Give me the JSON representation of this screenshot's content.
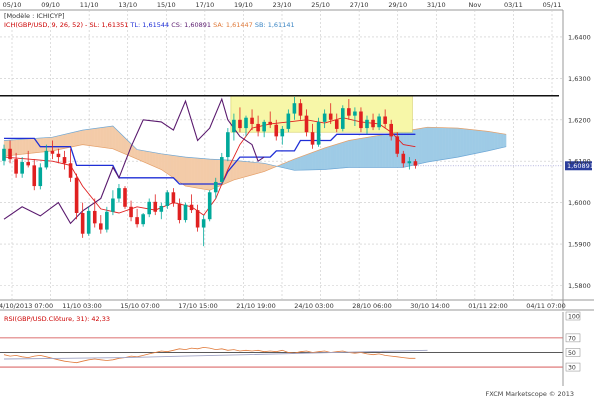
{
  "header": {
    "model_label": "[Modèle : ICHICYP]",
    "legend": [
      {
        "text": "ICH(GBP/USD, 9, 26, 52) -",
        "color": "#cc0000"
      },
      {
        "text": "SL: 1,61351",
        "color": "#cc0000"
      },
      {
        "text": "TL: 1,61544",
        "color": "#1f2fd6"
      },
      {
        "text": "CS: 1,60891",
        "color": "#5a1a6e"
      },
      {
        "text": "SA: 1,61447",
        "color": "#e07a3a"
      },
      {
        "text": "SB: 1,61141",
        "color": "#3c86c4"
      }
    ]
  },
  "rsi_header": {
    "text": "RSI(GBP/USD.Clôture, 31): 42,33",
    "color": "#cc0000"
  },
  "footer": {
    "text": "FXCM Marketscope © 2013"
  },
  "colors": {
    "grid": "#c8c8c8",
    "bull": "#00a89a",
    "bear": "#e02020",
    "tenkan": "#e02020",
    "kijun": "#1f2fd6",
    "chikou": "#5a1a6e",
    "cloud_bull": "#9ecbe6",
    "cloud_bear": "#f3cba8",
    "range_box": "#f7f7a8",
    "rsi_line": "#e07a3a",
    "rsi_ma": "#a0a4c4"
  },
  "chart_data": [
    {
      "type": "candlestick",
      "title": "ICH(GBP/USD, 9, 26, 52)",
      "top_axis_labels": [
        "05/10",
        "09/10",
        "11/10",
        "13/10",
        "15/10",
        "17/10",
        "19/10",
        "23/10",
        "25/10",
        "27/10",
        "29/10",
        "31/10",
        "Nov",
        "03/11",
        "05/11"
      ],
      "bottom_axis_labels": [
        "04/10/2013 07:00",
        "11/10 03:00",
        "15/10 07:00",
        "17/10 15:00",
        "21/10 19:00",
        "24/10 03:00",
        "28/10 06:00",
        "30/10 14:00",
        "01/11 22:00",
        "04/11 07:00"
      ],
      "y_ticks": [
        "1,6400",
        "1,6300",
        "1,6200",
        "1,6100",
        "1,6000",
        "1,5900",
        "1,5800"
      ],
      "ylim": [
        1.5765,
        1.6465
      ],
      "last_price_label": "1,60891",
      "horizontal_level": 1.6258,
      "range_box": {
        "from_index": 38,
        "to_index": 67,
        "y_low": 1.617,
        "y_high": 1.6258
      },
      "candles": [
        [
          1.6101,
          1.614,
          1.609,
          1.613
        ],
        [
          1.613,
          1.615,
          1.6095,
          1.6105
        ],
        [
          1.6105,
          1.612,
          1.606,
          1.607
        ],
        [
          1.607,
          1.611,
          1.606,
          1.6098
        ],
        [
          1.6098,
          1.6125,
          1.6085,
          1.609
        ],
        [
          1.609,
          1.6105,
          1.603,
          1.604
        ],
        [
          1.604,
          1.6095,
          1.6032,
          1.6085
        ],
        [
          1.6085,
          1.614,
          1.608,
          1.6125
        ],
        [
          1.6125,
          1.615,
          1.6105,
          1.6118
        ],
        [
          1.6118,
          1.613,
          1.6095,
          1.611
        ],
        [
          1.611,
          1.6125,
          1.608,
          1.6095
        ],
        [
          1.6095,
          1.613,
          1.605,
          1.606
        ],
        [
          1.606,
          1.607,
          1.596,
          1.5975
        ],
        [
          1.5975,
          1.6,
          1.5915,
          1.5925
        ],
        [
          1.5925,
          1.599,
          1.592,
          1.598
        ],
        [
          1.598,
          1.601,
          1.594,
          1.595
        ],
        [
          1.595,
          1.597,
          1.5925,
          1.5935
        ],
        [
          1.5935,
          1.599,
          1.5928,
          1.5978
        ],
        [
          1.5978,
          1.603,
          1.597,
          1.601
        ],
        [
          1.601,
          1.6045,
          1.6,
          1.6035
        ],
        [
          1.6035,
          1.604,
          1.5985,
          1.599
        ],
        [
          1.599,
          1.6005,
          1.5955,
          1.5965
        ],
        [
          1.5965,
          1.5985,
          1.594,
          1.5948
        ],
        [
          1.5948,
          1.5975,
          1.5942,
          1.5972
        ],
        [
          1.5972,
          1.601,
          1.5965,
          1.6002
        ],
        [
          1.6002,
          1.602,
          1.597,
          1.5978
        ],
        [
          1.5978,
          1.6,
          1.596,
          1.5992
        ],
        [
          1.5992,
          1.603,
          1.5985,
          1.6025
        ],
        [
          1.6025,
          1.6035,
          1.599,
          1.5998
        ],
        [
          1.5998,
          1.601,
          1.595,
          1.5958
        ],
        [
          1.5958,
          1.6,
          1.5952,
          1.5995
        ],
        [
          1.5995,
          1.602,
          1.5975,
          1.5982
        ],
        [
          1.5982,
          1.5995,
          1.593,
          1.594
        ],
        [
          1.594,
          1.597,
          1.5895,
          1.596
        ],
        [
          1.596,
          1.603,
          1.5955,
          1.6025
        ],
        [
          1.6025,
          1.606,
          1.601,
          1.605
        ],
        [
          1.605,
          1.612,
          1.6045,
          1.611
        ],
        [
          1.611,
          1.618,
          1.61,
          1.617
        ],
        [
          1.617,
          1.6215,
          1.615,
          1.62
        ],
        [
          1.62,
          1.623,
          1.617,
          1.618
        ],
        [
          1.618,
          1.621,
          1.616,
          1.6205
        ],
        [
          1.6205,
          1.6225,
          1.6175,
          1.619
        ],
        [
          1.619,
          1.621,
          1.616,
          1.6172
        ],
        [
          1.6172,
          1.62,
          1.6158,
          1.6195
        ],
        [
          1.6195,
          1.622,
          1.618,
          1.6188
        ],
        [
          1.6188,
          1.62,
          1.615,
          1.616
        ],
        [
          1.616,
          1.6185,
          1.614,
          1.6178
        ],
        [
          1.6178,
          1.6225,
          1.617,
          1.6215
        ],
        [
          1.6215,
          1.6255,
          1.62,
          1.624
        ],
        [
          1.624,
          1.625,
          1.62,
          1.621
        ],
        [
          1.621,
          1.6225,
          1.616,
          1.617
        ],
        [
          1.617,
          1.619,
          1.613,
          1.614
        ],
        [
          1.614,
          1.6205,
          1.6135,
          1.6195
        ],
        [
          1.6195,
          1.6225,
          1.618,
          1.6215
        ],
        [
          1.6215,
          1.624,
          1.619,
          1.62
        ],
        [
          1.62,
          1.6215,
          1.617,
          1.6178
        ],
        [
          1.6178,
          1.6235,
          1.6172,
          1.6228
        ],
        [
          1.6228,
          1.625,
          1.62,
          1.621
        ],
        [
          1.621,
          1.623,
          1.6185,
          1.622
        ],
        [
          1.622,
          1.623,
          1.617,
          1.618
        ],
        [
          1.618,
          1.621,
          1.6165,
          1.62
        ],
        [
          1.62,
          1.6215,
          1.6175,
          1.6182
        ],
        [
          1.6182,
          1.6215,
          1.6175,
          1.6208
        ],
        [
          1.6208,
          1.6225,
          1.618,
          1.619
        ],
        [
          1.619,
          1.62,
          1.615,
          1.616
        ],
        [
          1.616,
          1.617,
          1.611,
          1.6118
        ],
        [
          1.6118,
          1.6125,
          1.6085,
          1.6095
        ],
        [
          1.6095,
          1.611,
          1.608,
          1.61
        ],
        [
          1.61,
          1.6105,
          1.6082,
          1.6089
        ]
      ],
      "tenkan": [
        [
          0,
          1.611
        ],
        [
          4,
          1.6105
        ],
        [
          8,
          1.61
        ],
        [
          11,
          1.609
        ],
        [
          13,
          1.604
        ],
        [
          16,
          1.5985
        ],
        [
          19,
          1.5975
        ],
        [
          22,
          1.599
        ],
        [
          25,
          1.5982
        ],
        [
          28,
          1.6
        ],
        [
          31,
          1.599
        ],
        [
          33,
          1.597
        ],
        [
          35,
          1.601
        ],
        [
          37,
          1.608
        ],
        [
          39,
          1.614
        ],
        [
          41,
          1.618
        ],
        [
          44,
          1.619
        ],
        [
          47,
          1.6195
        ],
        [
          50,
          1.62
        ],
        [
          53,
          1.6192
        ],
        [
          56,
          1.6205
        ],
        [
          59,
          1.6195
        ],
        [
          62,
          1.619
        ],
        [
          64,
          1.617
        ],
        [
          66,
          1.614
        ],
        [
          68,
          1.6135
        ]
      ],
      "kijun": [
        [
          0,
          1.6155
        ],
        [
          5,
          1.6155
        ],
        [
          6,
          1.6135
        ],
        [
          11,
          1.6135
        ],
        [
          12,
          1.609
        ],
        [
          18,
          1.609
        ],
        [
          19,
          1.606
        ],
        [
          28,
          1.606
        ],
        [
          29,
          1.6045
        ],
        [
          36,
          1.6045
        ],
        [
          37,
          1.6075
        ],
        [
          39,
          1.611
        ],
        [
          44,
          1.611
        ],
        [
          45,
          1.6125
        ],
        [
          48,
          1.6125
        ],
        [
          49,
          1.615
        ],
        [
          54,
          1.615
        ],
        [
          55,
          1.6165
        ],
        [
          68,
          1.6165
        ]
      ],
      "chikou": [
        [
          0,
          1.596
        ],
        [
          3,
          1.599
        ],
        [
          6,
          1.5968
        ],
        [
          9,
          1.6
        ],
        [
          11,
          1.595
        ],
        [
          13,
          1.598
        ],
        [
          16,
          1.601
        ],
        [
          18,
          1.6085
        ],
        [
          19,
          1.606
        ],
        [
          21,
          1.6135
        ],
        [
          23,
          1.62
        ],
        [
          26,
          1.6195
        ],
        [
          28,
          1.6175
        ],
        [
          30,
          1.6245
        ],
        [
          32,
          1.615
        ],
        [
          34,
          1.618
        ],
        [
          36,
          1.625
        ],
        [
          37,
          1.62
        ],
        [
          39,
          1.616
        ],
        [
          41,
          1.614
        ],
        [
          42,
          1.61
        ],
        [
          43,
          1.611
        ]
      ],
      "cloud_a": [
        [
          0,
          1.6112
        ],
        [
          8,
          1.6125
        ],
        [
          13,
          1.614
        ],
        [
          18,
          1.613
        ],
        [
          22,
          1.6105
        ],
        [
          26,
          1.608
        ],
        [
          30,
          1.604
        ],
        [
          34,
          1.603
        ],
        [
          38,
          1.6055
        ],
        [
          43,
          1.6075
        ],
        [
          48,
          1.6105
        ],
        [
          53,
          1.6132
        ],
        [
          57,
          1.615
        ],
        [
          61,
          1.616
        ],
        [
          66,
          1.6172
        ],
        [
          70,
          1.6182
        ],
        [
          75,
          1.618
        ],
        [
          80,
          1.6172
        ],
        [
          83,
          1.6165
        ]
      ],
      "cloud_b": [
        [
          0,
          1.615
        ],
        [
          8,
          1.6158
        ],
        [
          13,
          1.6175
        ],
        [
          18,
          1.6185
        ],
        [
          22,
          1.6128
        ],
        [
          26,
          1.6118
        ],
        [
          30,
          1.611
        ],
        [
          34,
          1.6105
        ],
        [
          38,
          1.6102
        ],
        [
          43,
          1.6095
        ],
        [
          48,
          1.6078
        ],
        [
          53,
          1.608
        ],
        [
          57,
          1.6085
        ],
        [
          61,
          1.6085
        ],
        [
          66,
          1.6085
        ],
        [
          70,
          1.6098
        ],
        [
          75,
          1.611
        ],
        [
          80,
          1.6125
        ],
        [
          83,
          1.6135
        ]
      ]
    },
    {
      "type": "line",
      "title": "RSI(GBP/USD.Clôture, 31): 42,33",
      "y_ticks": [
        100,
        70,
        50,
        30
      ],
      "ylim": [
        15,
        100
      ],
      "levels": [
        70,
        50,
        30
      ],
      "series": [
        {
          "role": "rsi",
          "values": [
            47,
            45,
            46,
            44,
            43,
            45,
            46,
            44,
            42,
            40,
            38,
            37,
            36,
            38,
            40,
            41,
            40,
            39,
            40,
            42,
            43,
            45,
            44,
            46,
            48,
            50,
            52,
            51,
            53,
            55,
            54,
            56,
            55,
            57,
            56,
            54,
            55,
            53,
            54,
            52,
            53,
            52,
            53,
            51,
            52,
            51,
            53,
            50,
            49,
            51,
            52,
            50,
            51,
            52,
            50,
            51,
            52,
            50,
            49,
            50,
            48,
            47,
            48,
            46,
            45,
            44,
            43,
            42,
            42
          ]
        },
        {
          "role": "average",
          "values": [
            [
              0,
              41
            ],
            [
              10,
              42
            ],
            [
              20,
              43
            ],
            [
              30,
              45
            ],
            [
              40,
              47
            ],
            [
              50,
              49
            ],
            [
              60,
              51
            ],
            [
              70,
              53
            ]
          ]
        }
      ]
    }
  ]
}
